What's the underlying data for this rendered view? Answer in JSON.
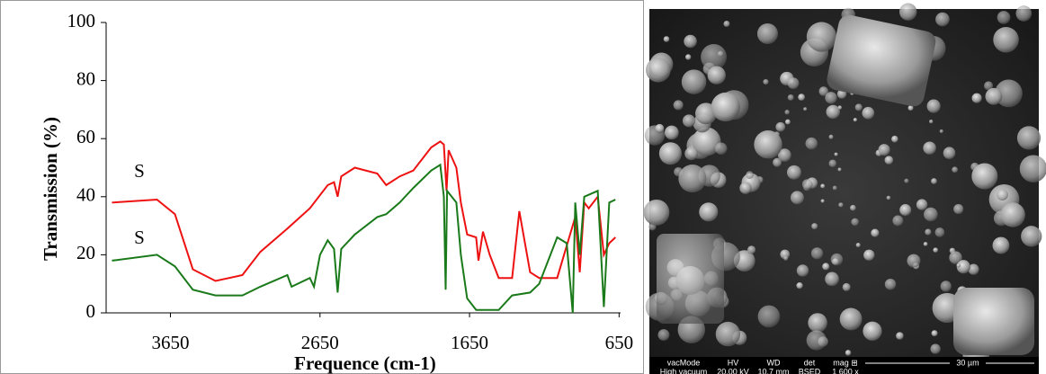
{
  "chart_data": {
    "type": "line",
    "x_label": "Frequence (cm-1)",
    "y_label": "Transmission (%)",
    "xlim": [
      4080,
      640
    ],
    "ylim": [
      0,
      100
    ],
    "xticks": [
      3650,
      2650,
      1650,
      650
    ],
    "yticks": [
      0,
      20,
      40,
      60,
      80,
      100
    ],
    "annotations": [
      "S",
      "S"
    ],
    "series": [
      {
        "color": "#ee1111",
        "x": [
          4041,
          3740,
          3620,
          3500,
          3349,
          3169,
          3049,
          2868,
          2718,
          2598,
          2556,
          2532,
          2508,
          2417,
          2267,
          2207,
          2117,
          2026,
          1906,
          1846,
          1822,
          1804,
          1790,
          1738,
          1708,
          1666,
          1606,
          1590,
          1560,
          1515,
          1455,
          1365,
          1317,
          1245,
          1184,
          1064,
          943,
          913,
          883,
          853,
          793,
          752,
          716,
          674
        ],
        "values": [
          38,
          39,
          34,
          15,
          11,
          13,
          21,
          29,
          36,
          44,
          45,
          40,
          47,
          50,
          48,
          44,
          47,
          49,
          57,
          59,
          58,
          42,
          56,
          50,
          38,
          27,
          26,
          18,
          28,
          20,
          12,
          12,
          35,
          14,
          12,
          12,
          33,
          14,
          38,
          36,
          40,
          20,
          24,
          26
        ]
      },
      {
        "color": "#1a7a1a",
        "x": [
          4041,
          3740,
          3620,
          3500,
          3349,
          3169,
          3049,
          2868,
          2840,
          2718,
          2690,
          2650,
          2598,
          2556,
          2532,
          2508,
          2417,
          2267,
          2207,
          2117,
          2026,
          1906,
          1846,
          1822,
          1810,
          1800,
          1738,
          1708,
          1666,
          1606,
          1455,
          1365,
          1245,
          1184,
          1064,
          1000,
          960,
          943,
          913,
          883,
          793,
          752,
          716,
          674
        ],
        "values": [
          18,
          20,
          16,
          8,
          6,
          6,
          9,
          13,
          9,
          12,
          9,
          20,
          25,
          22,
          7,
          22,
          27,
          33,
          34,
          38,
          43,
          49,
          51,
          40,
          8,
          42,
          38,
          20,
          5,
          1,
          1,
          6,
          7,
          10,
          26,
          24,
          0,
          38,
          20,
          40,
          42,
          2,
          38,
          39
        ]
      }
    ]
  },
  "sem_image": {
    "headers": [
      "vacMode",
      "HV",
      "WD",
      "det",
      "mag ⊞"
    ],
    "values": [
      "High vacuum",
      "20.00 kV",
      "10.7 mm",
      "BSED",
      "1 600 x"
    ],
    "scale_bar": "30 µm"
  }
}
